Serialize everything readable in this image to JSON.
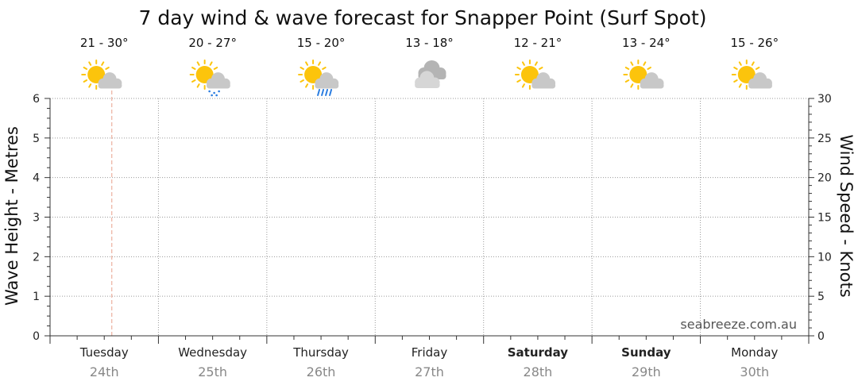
{
  "chart_data": {
    "type": "line",
    "title": "7 day wind & wave forecast for Snapper Point  (Surf Spot)",
    "ylabel_left": "Wave Height - Metres",
    "ylabel_right": "Wind Speed - Knots",
    "ylim_left": [
      0,
      6
    ],
    "ylim_right": [
      0,
      30
    ],
    "yticks_left": [
      "0",
      "1",
      "2",
      "3",
      "4",
      "5",
      "6"
    ],
    "yticks_right": [
      "0",
      "5",
      "10",
      "15",
      "20",
      "25",
      "30"
    ],
    "grid": true,
    "days": [
      {
        "name": "Tuesday",
        "date": "24th",
        "temp": "21 - 30°",
        "icon": "partly-cloudy-icon",
        "bold": false
      },
      {
        "name": "Wednesday",
        "date": "25th",
        "temp": "20 - 27°",
        "icon": "drizzle-icon",
        "bold": false
      },
      {
        "name": "Thursday",
        "date": "26th",
        "temp": "15 - 20°",
        "icon": "showers-icon",
        "bold": false
      },
      {
        "name": "Friday",
        "date": "27th",
        "temp": "13 - 18°",
        "icon": "cloudy-icon",
        "bold": false
      },
      {
        "name": "Saturday",
        "date": "28th",
        "temp": "12 - 21°",
        "icon": "partly-cloudy-icon",
        "bold": true
      },
      {
        "name": "Sunday",
        "date": "29th",
        "temp": "13 - 24°",
        "icon": "partly-cloudy-icon",
        "bold": true
      },
      {
        "name": "Monday",
        "date": "30th",
        "temp": "15 - 26°",
        "icon": "partly-cloudy-icon",
        "bold": false
      }
    ],
    "series": [],
    "current_time_marker": "Tuesday"
  },
  "watermark": "seabreeze.com.au",
  "colors": {
    "grid": "#9a9a9a",
    "now_marker": "#e8a08c",
    "sun": "#fcc40c",
    "cloud": "#c8c8c8",
    "rain": "#2b7de0"
  }
}
